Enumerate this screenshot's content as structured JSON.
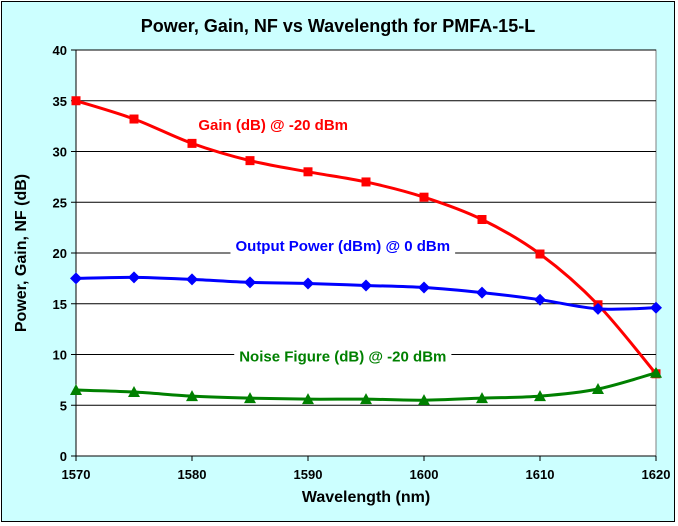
{
  "chart_data": {
    "type": "line",
    "title": "Power, Gain, NF vs Wavelength for PMFA-15-L",
    "xlabel": "Wavelength (nm)",
    "ylabel": "Power, Gain, NF (dB)",
    "xlim": [
      1570,
      1620
    ],
    "ylim": [
      0,
      40
    ],
    "x_ticks": [
      1570,
      1580,
      1590,
      1600,
      1610,
      1620
    ],
    "y_ticks": [
      0,
      5,
      10,
      15,
      20,
      25,
      30,
      35,
      40
    ],
    "grid": "horizontal",
    "legend": "none (inline annotations)",
    "series": [
      {
        "name": "Gain (dB) @ -20 dBm",
        "color": "#ff0000",
        "marker": "square",
        "x": [
          1570,
          1575,
          1580,
          1585,
          1590,
          1595,
          1600,
          1605,
          1610,
          1615,
          1620
        ],
        "y": [
          35.0,
          33.2,
          30.8,
          29.1,
          28.0,
          27.0,
          25.5,
          23.3,
          19.9,
          14.9,
          8.1
        ]
      },
      {
        "name": "Output Power (dBm) @ 0 dBm",
        "color": "#0000ff",
        "marker": "diamond",
        "x": [
          1570,
          1575,
          1580,
          1585,
          1590,
          1595,
          1600,
          1605,
          1610,
          1615,
          1620
        ],
        "y": [
          17.5,
          17.6,
          17.4,
          17.1,
          17.0,
          16.8,
          16.6,
          16.1,
          15.4,
          14.5,
          14.6
        ]
      },
      {
        "name": "Noise Figure (dB) @ -20 dBm",
        "color": "#008000",
        "marker": "triangle",
        "x": [
          1570,
          1575,
          1580,
          1585,
          1590,
          1595,
          1600,
          1605,
          1610,
          1615,
          1620
        ],
        "y": [
          6.5,
          6.3,
          5.9,
          5.7,
          5.6,
          5.6,
          5.5,
          5.7,
          5.9,
          6.6,
          8.2
        ]
      }
    ],
    "annotations": [
      {
        "text": "Gain (dB) @ -20 dBm",
        "color": "#ff0000",
        "x": 1587,
        "y": 32.5
      },
      {
        "text": "Output Power (dBm) @ 0 dBm",
        "color": "#0000ff",
        "x": 1593,
        "y": 20.6
      },
      {
        "text": "Noise Figure (dB) @ -20 dBm",
        "color": "#008000",
        "x": 1593,
        "y": 9.7
      }
    ],
    "colors": {
      "background": "#ccffff",
      "plot_area": "#ffffff",
      "gridline": "#000000"
    }
  }
}
